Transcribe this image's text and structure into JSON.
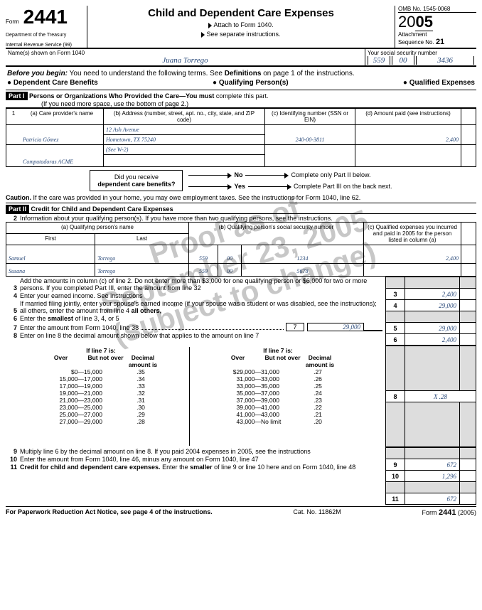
{
  "header": {
    "form_label": "Form",
    "form_no": "2441",
    "dept1": "Department of the Treasury",
    "dept2": "Internal Revenue Service   (99)",
    "title": "Child and Dependent Care Expenses",
    "attach": "Attach to Form 1040.",
    "see": "See separate instructions.",
    "omb": "OMB No. 1545-0068",
    "year_prefix": "20",
    "year_suffix": "05",
    "attachment": "Attachment",
    "seq": "Sequence No.",
    "seq_no": "21"
  },
  "name_row": {
    "name_label": "Name(s) shown on Form 1040",
    "name": "Juana Torrego",
    "ssn_label": "Your social security number",
    "ssn1": "559",
    "ssn2": "00",
    "ssn3": "3436"
  },
  "before": {
    "lead": "Before you begin:",
    "text": "You need to understand the following terms. See",
    "def": "Definitions",
    "text2": "on page 1 of the instructions.",
    "b1": "Dependent Care Benefits",
    "b2": "Qualifying Person(s)",
    "b3": "Qualified Expenses"
  },
  "part1": {
    "label": "Part I",
    "title": "Persons or Organizations Who Provided the Care—",
    "must": "You must",
    "rest": " complete this part.",
    "sub": "(If you need more space, use the bottom of page 2.)",
    "col_a": "(a) Care provider's name",
    "col_b": "(b) Address (number, street, apt. no., city, state, and ZIP code)",
    "col_c": "(c) Identifying number (SSN or EIN)",
    "col_d": "(d) Amount paid (see instructions)",
    "row_no": "1",
    "r1_name": "Patricia Gómez",
    "r1_addr1": "12 Ash Avenue",
    "r1_addr2": "Hometown, TX 75240",
    "r1_id": "240-00-3811",
    "r1_amt": "2,400",
    "r2_name": "Computadoras ACME",
    "r2_addr": "(See W-2)"
  },
  "benefits": {
    "q1": "Did you receive",
    "q2": "dependent care benefits?",
    "no": "No",
    "yes": "Yes",
    "no_text": "Complete only Part II below.",
    "yes_text": "Complete Part III on the back next."
  },
  "caution": {
    "label": "Caution.",
    "text": "If the care was provided in your home, you may owe employment taxes. See the instructions for Form 1040, line 62."
  },
  "part2": {
    "label": "Part II",
    "title": "Credit for Child and Dependent Care Expenses",
    "l2_no": "2",
    "l2": "Information about your qualifying person(s). If you have more than two qualifying persons, see the instructions.",
    "col_a": "(a) Qualifying person's name",
    "col_a_first": "First",
    "col_a_last": "Last",
    "col_b": "(b) Qualifying person's social security number",
    "col_c": "(c) Qualified expenses you incurred and paid in 2005 for the person listed in column (a)",
    "q1_first": "Samuel",
    "q1_last": "Torrego",
    "q1_s1": "559",
    "q1_s2": "00",
    "q1_s3": "1234",
    "q1_amt": "2,400",
    "q2_first": "Susana",
    "q2_last": "Torrego",
    "q2_s1": "559",
    "q2_s2": "00",
    "q2_s3": "5678",
    "q2_amt": ""
  },
  "lines": {
    "l3_no": "3",
    "l3": "Add the amounts in column (c) of line 2. Do not enter more than $3,000 for one qualifying person or $6,000 for two or more persons. If you completed Part III, enter the amount from line 32",
    "l3_amt": "2,400",
    "l4_no": "4",
    "l4": "Enter your earned income. See instructions",
    "l4_amt": "29,000",
    "l5_no": "5",
    "l5": "If married filing jointly, enter your spouse's earned income (if your spouse was a student or was disabled, see the instructions); all others, enter the amount from line 4",
    "l5_amt": "29,000",
    "l6_no": "6",
    "l6": "Enter the smallest of line 3, 4, or 5",
    "l6_amt": "2,400",
    "l7_no": "7",
    "l7": "Enter the amount from Form 1040, line 38",
    "l7_box": "7",
    "l7_amt": "29,000",
    "l8_no": "8",
    "l8": "Enter on line 8 the decimal amount shown below that applies to the amount on line 7",
    "l8_box": "8",
    "l8_amt": "X .28",
    "l9_no": "9",
    "l9": "Multiply line 6 by the decimal amount on line 8. If you paid 2004 expenses in 2005, see the instructions",
    "l9_amt": "672",
    "l10_no": "10",
    "l10": "Enter the amount from Form 1040, line 46, minus any amount on Form 1040, line 47",
    "l10_amt": "1,296",
    "l11_no": "11",
    "l11a": "Credit for child and dependent care expenses.",
    "l11b": "Enter the smaller of line 9 or line 10 here and on Form 1040, line 48",
    "l11_amt": "672"
  },
  "decimal": {
    "if7": "If line 7 is:",
    "over": "Over",
    "notover": "But not over",
    "decamt": "Decimal amount is",
    "left": [
      [
        "$0—",
        "15,000",
        ".35"
      ],
      [
        "15,000—",
        "17,000",
        ".34"
      ],
      [
        "17,000—",
        "19,000",
        ".33"
      ],
      [
        "19,000—",
        "21,000",
        ".32"
      ],
      [
        "21,000—",
        "23,000",
        ".31"
      ],
      [
        "23,000—",
        "25,000",
        ".30"
      ],
      [
        "25,000—",
        "27,000",
        ".29"
      ],
      [
        "27,000—",
        "29,000",
        ".28"
      ]
    ],
    "right": [
      [
        "$29,000—",
        "31,000",
        ".27"
      ],
      [
        "31,000—",
        "33,000",
        ".26"
      ],
      [
        "33,000—",
        "35,000",
        ".25"
      ],
      [
        "35,000—",
        "37,000",
        ".24"
      ],
      [
        "37,000—",
        "39,000",
        ".23"
      ],
      [
        "39,000—",
        "41,000",
        ".22"
      ],
      [
        "41,000—",
        "43,000",
        ".21"
      ],
      [
        "43,000—",
        "No limit",
        ".20"
      ]
    ]
  },
  "footer": {
    "left": "For Paperwork Reduction Act Notice, see page 4 of the instructions.",
    "mid": "Cat. No. 11862M",
    "right1": "Form",
    "right2": "2441",
    "right3": "(2005)"
  },
  "watermark": {
    "l1": "Proof as of",
    "l2": "September 23, 2005",
    "l3": "(subject to change)"
  }
}
